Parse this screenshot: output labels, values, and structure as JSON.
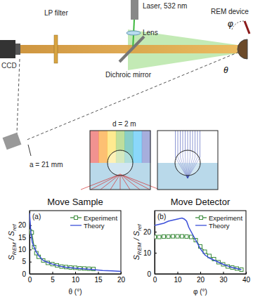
{
  "diagram": {
    "ccd": "CCD",
    "lp_filter": "LP filter",
    "laser": "Laser, 532 nm",
    "lens": "Lens",
    "mirror": "Dichroic mirror",
    "device": "REM device",
    "theta": "θ",
    "phi": "φ",
    "distance": "d = 2 m",
    "offset": "a = 21 mm"
  },
  "chart_data": [
    {
      "type": "line",
      "title": "Move Sample",
      "annotation": "(a)",
      "xlabel": "θ (°)",
      "ylabel": [
        {
          "text": "S"
        },
        {
          "text": "REM",
          "sub": true
        },
        {
          "text": " / S"
        },
        {
          "text": "ref",
          "sub": true
        }
      ],
      "xlim": [
        0,
        20
      ],
      "ylim": [
        0,
        26
      ],
      "xticks": [
        0,
        5,
        10,
        15,
        20
      ],
      "yticks": [
        0,
        5,
        10,
        15,
        20
      ],
      "grid": false,
      "legend": "upper right",
      "series": [
        {
          "name": "Experiment",
          "color": "#3a8a3a",
          "marker": "square",
          "line_style": "solid",
          "x": [
            0.1,
            0.5,
            1,
            1.5,
            2,
            3,
            4,
            5,
            6,
            7,
            8,
            9,
            10,
            11,
            12,
            13,
            14
          ],
          "values": [
            17.5,
            17,
            11,
            8.5,
            7,
            5.5,
            4.5,
            4,
            3.5,
            3,
            2.8,
            2.6,
            2.5,
            2.3,
            2.2,
            2.1,
            2
          ]
        },
        {
          "name": "Theory",
          "color": "#3b4fd9",
          "marker": "none",
          "line_style": "solid",
          "x": [
            0,
            0.3,
            0.6,
            1,
            1.5,
            2,
            3,
            4,
            5,
            6,
            7,
            8,
            10,
            12,
            14,
            16,
            18,
            20
          ],
          "values": [
            25,
            17,
            13,
            11,
            9,
            7.5,
            5.5,
            4.7,
            4,
            3.5,
            3,
            2.7,
            2.3,
            2,
            1.7,
            1.4,
            1.2,
            1
          ]
        }
      ]
    },
    {
      "type": "line",
      "title": "Move Detector",
      "annotation": "(b)",
      "xlabel": "φ (°)",
      "ylabel": [
        {
          "text": "S"
        },
        {
          "text": "REM",
          "sub": true
        },
        {
          "text": " / S"
        },
        {
          "text": "ref",
          "sub": true
        }
      ],
      "xlim": [
        0,
        40
      ],
      "ylim": [
        0,
        30
      ],
      "xticks": [
        0,
        10,
        20,
        30,
        40
      ],
      "yticks": [
        0,
        10,
        20
      ],
      "grid": false,
      "legend": "upper right",
      "series": [
        {
          "name": "Experiment",
          "color": "#3a8a3a",
          "marker": "square",
          "line_style": "solid",
          "x": [
            0,
            2,
            4,
            6,
            8,
            10,
            12,
            14,
            16,
            18,
            20,
            22,
            24,
            26,
            28,
            30,
            32,
            34,
            36,
            38
          ],
          "values": [
            17.5,
            17.5,
            17.7,
            17.7,
            17.8,
            17.8,
            17.8,
            17.7,
            17.5,
            16,
            13,
            10.5,
            8.5,
            7,
            5.5,
            4.5,
            3.5,
            3,
            2.5,
            2
          ]
        },
        {
          "name": "Theory",
          "color": "#3b4fd9",
          "marker": "none",
          "line_style": "solid",
          "x": [
            0,
            2,
            4,
            6,
            8,
            10,
            12,
            13,
            14,
            15,
            16,
            18,
            20,
            22,
            24,
            26,
            28,
            30,
            32,
            34,
            36,
            38
          ],
          "values": [
            23,
            23.5,
            24,
            25,
            25.5,
            26,
            26.5,
            26,
            25,
            22,
            20,
            16,
            12,
            9,
            7.5,
            6.5,
            5.5,
            4.5,
            3.7,
            3,
            2.5,
            2
          ]
        }
      ]
    }
  ]
}
